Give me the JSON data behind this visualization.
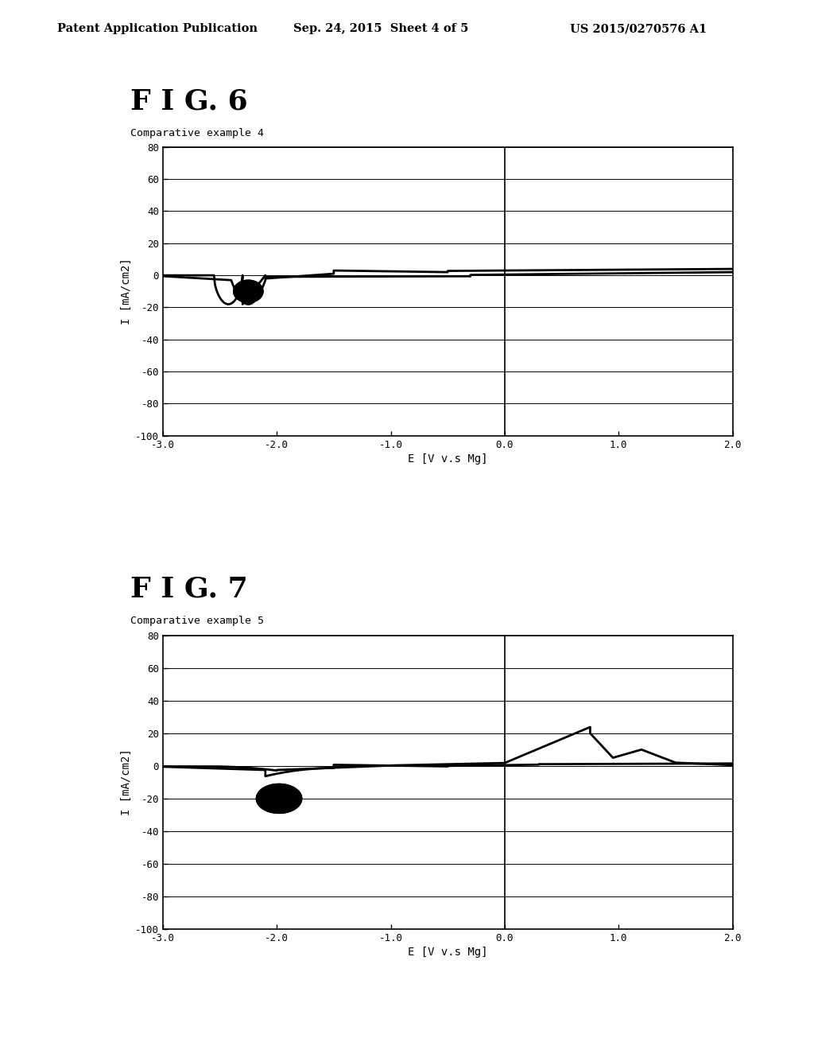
{
  "page_header_left": "Patent Application Publication",
  "page_header_center": "Sep. 24, 2015  Sheet 4 of 5",
  "page_header_right": "US 2015/0270576 A1",
  "fig6_title": "F I G. 6",
  "fig6_subtitle": "Comparative example 4",
  "fig7_title": "F I G. 7",
  "fig7_subtitle": "Comparative example 5",
  "xlabel": "E [V v.s Mg]",
  "ylabel": "I [mA/cm2]",
  "xlim": [
    -3.0,
    2.0
  ],
  "ylim": [
    -100,
    80
  ],
  "xticks": [
    -3.0,
    -2.0,
    -1.0,
    0.0,
    1.0,
    2.0
  ],
  "xticklabels": [
    "-3.0",
    "-2.0",
    "-1.0",
    "0.0",
    "1.0",
    "2.0"
  ],
  "yticks": [
    -100,
    -80,
    -60,
    -40,
    -20,
    0,
    20,
    40,
    60,
    80
  ],
  "bg_color": "#ffffff",
  "plot_bg_color": "#ffffff",
  "line_color": "#000000"
}
